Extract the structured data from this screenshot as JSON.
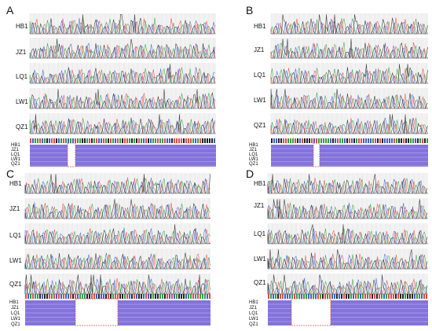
{
  "panels": [
    {
      "letter": "A",
      "samples": [
        "HB1",
        "JZ1",
        "LQ1",
        "LW1",
        "QZ1"
      ]
    },
    {
      "letter": "B",
      "samples": [
        "HB1",
        "JZ1",
        "LQ1",
        "LW1",
        "QZ1"
      ]
    },
    {
      "letter": "C",
      "samples": [
        "HB1",
        "JZ1",
        "LQ1",
        "LW1",
        "QZ1"
      ]
    },
    {
      "letter": "D",
      "samples": [
        "HB1",
        "JZ1",
        "LQ1",
        "LW1",
        "QZ1"
      ]
    }
  ],
  "trace_colors": [
    "#2e9e3e",
    "#e8473f",
    "#3a5fd0",
    "#222222"
  ],
  "alignment_colors": {
    "bases": "#6e5bd6",
    "gap_box": "#e05050"
  }
}
